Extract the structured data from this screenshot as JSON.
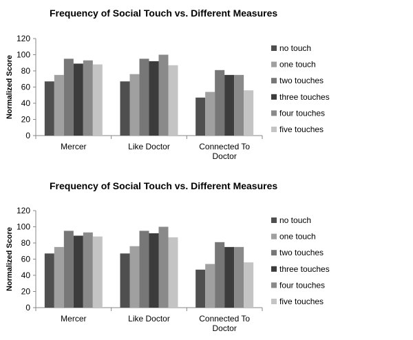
{
  "chart_data": [
    {
      "type": "bar",
      "title": "Frequency of Social Touch vs. Different  Measures",
      "ylabel": "Normalized Score",
      "xlabel": "",
      "ylim": [
        0,
        120
      ],
      "yticks": [
        0,
        20,
        40,
        60,
        80,
        100,
        120
      ],
      "categories": [
        [
          "Mercer"
        ],
        [
          "Like Doctor"
        ],
        [
          "Connected To",
          "Doctor"
        ]
      ],
      "legend_position": "right",
      "grid": false,
      "series": [
        {
          "name": "no touch",
          "color": "#4f4f4f",
          "values": [
            67,
            67,
            47
          ]
        },
        {
          "name": "one touch",
          "color": "#a0a0a0",
          "values": [
            75,
            76,
            54
          ]
        },
        {
          "name": "two touches",
          "color": "#777777",
          "values": [
            95,
            95,
            81
          ]
        },
        {
          "name": "three touches",
          "color": "#3c3c3c",
          "values": [
            89,
            92,
            75
          ]
        },
        {
          "name": "four touches",
          "color": "#8a8a8a",
          "values": [
            93,
            100,
            75
          ]
        },
        {
          "name": "five touches",
          "color": "#c4c4c4",
          "values": [
            88,
            87,
            56
          ]
        }
      ]
    },
    {
      "type": "bar",
      "title": "Frequency of Social Touch vs. Different  Measures",
      "ylabel": "Normalized Score",
      "xlabel": "",
      "ylim": [
        0,
        120
      ],
      "yticks": [
        0,
        20,
        40,
        60,
        80,
        100,
        120
      ],
      "categories": [
        [
          "Mercer"
        ],
        [
          "Like Doctor"
        ],
        [
          "Connected To",
          "Doctor"
        ]
      ],
      "legend_position": "right",
      "grid": false,
      "series": [
        {
          "name": "no touch",
          "color": "#4f4f4f",
          "values": [
            67,
            67,
            47
          ]
        },
        {
          "name": "one touch",
          "color": "#a0a0a0",
          "values": [
            75,
            76,
            54
          ]
        },
        {
          "name": "two touches",
          "color": "#777777",
          "values": [
            95,
            95,
            81
          ]
        },
        {
          "name": "three touches",
          "color": "#3c3c3c",
          "values": [
            89,
            92,
            75
          ]
        },
        {
          "name": "four touches",
          "color": "#8a8a8a",
          "values": [
            93,
            100,
            75
          ]
        },
        {
          "name": "five touches",
          "color": "#c4c4c4",
          "values": [
            88,
            87,
            56
          ]
        }
      ]
    }
  ]
}
